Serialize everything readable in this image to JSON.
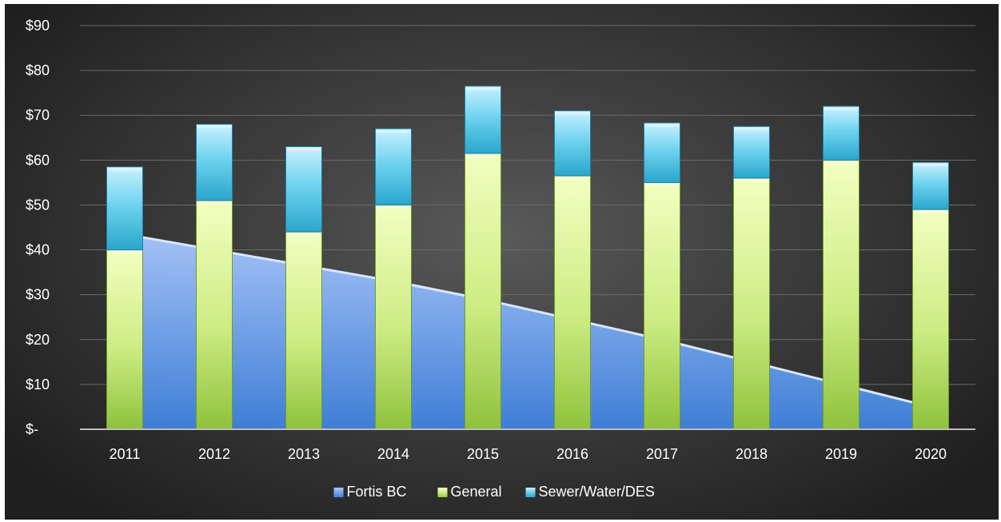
{
  "chart_data": {
    "type": "bar",
    "subtype": "stacked bar with area",
    "categories": [
      "2011",
      "2012",
      "2013",
      "2014",
      "2015",
      "2016",
      "2017",
      "2018",
      "2019",
      "2020"
    ],
    "series": [
      {
        "name": "Fortis BC",
        "kind": "area",
        "values": [
          43.5,
          40,
          36.5,
          33,
          29,
          24.5,
          20,
          15,
          10,
          5
        ],
        "color": "#4d8fe0"
      },
      {
        "name": "General",
        "kind": "bar",
        "values": [
          40,
          51,
          44,
          50,
          61.5,
          56.5,
          55,
          56,
          60,
          49
        ],
        "color": "#a8d65a"
      },
      {
        "name": "Sewer/Water/DES",
        "kind": "bar",
        "values": [
          18.5,
          17,
          19,
          17,
          15,
          14.5,
          13.3,
          11.5,
          12,
          10.5
        ],
        "color": "#42c0de"
      }
    ],
    "y_ticks": [
      "$-",
      "$10",
      "$20",
      "$30",
      "$40",
      "$50",
      "$60",
      "$70",
      "$80",
      "$90"
    ],
    "ylim": [
      0,
      90
    ],
    "grid": true,
    "legend_position": "bottom",
    "title": "",
    "xlabel": "",
    "ylabel": ""
  }
}
